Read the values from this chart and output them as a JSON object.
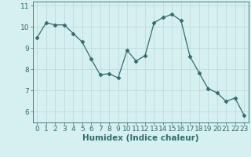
{
  "x": [
    0,
    1,
    2,
    3,
    4,
    5,
    6,
    7,
    8,
    9,
    10,
    11,
    12,
    13,
    14,
    15,
    16,
    17,
    18,
    19,
    20,
    21,
    22,
    23
  ],
  "y": [
    9.5,
    10.2,
    10.1,
    10.1,
    9.7,
    9.3,
    8.5,
    7.75,
    7.8,
    7.6,
    8.9,
    8.4,
    8.65,
    10.2,
    10.45,
    10.6,
    10.3,
    8.6,
    7.85,
    7.1,
    6.9,
    6.5,
    6.65,
    5.85
  ],
  "line_color": "#2e6e6e",
  "marker": "D",
  "marker_size": 2.5,
  "bg_color": "#d6f0f0",
  "grid_color": "#b8d8d8",
  "xlabel": "Humidex (Indice chaleur)",
  "ylim": [
    5.5,
    11.2
  ],
  "yticks": [
    6,
    7,
    8,
    9,
    10,
    11
  ],
  "xticks": [
    0,
    1,
    2,
    3,
    4,
    5,
    6,
    7,
    8,
    9,
    10,
    11,
    12,
    13,
    14,
    15,
    16,
    17,
    18,
    19,
    20,
    21,
    22,
    23
  ],
  "xlabel_fontsize": 7.5,
  "tick_fontsize": 6.5
}
